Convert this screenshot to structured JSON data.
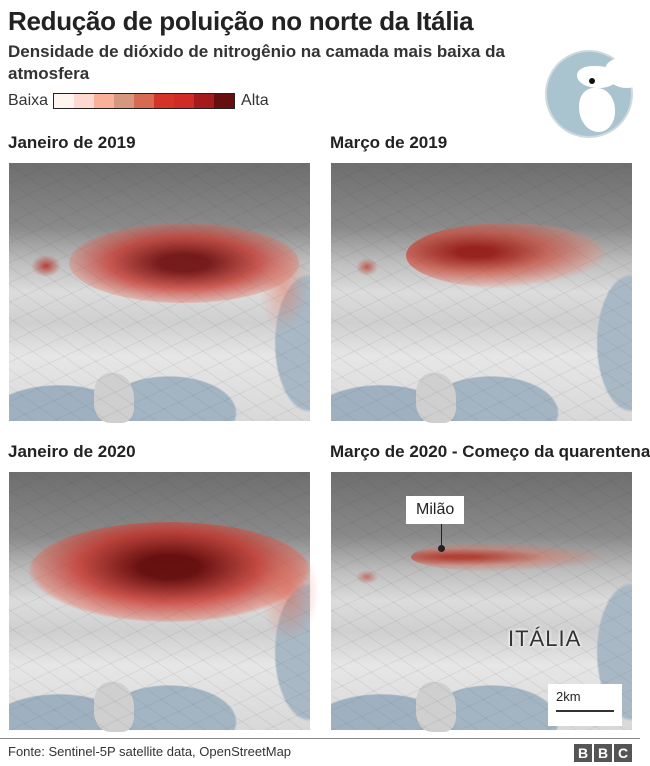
{
  "header": {
    "title": "Redução de poluição no norte da Itália",
    "subtitle": "Densidade de dióxido de nitrogênio na camada mais baixa da atmosfera"
  },
  "legend": {
    "low_label": "Baixa",
    "high_label": "Alta",
    "colors": [
      "#fff5ee",
      "#fdd9cf",
      "#fbb09a",
      "#d5977e",
      "#d66a52",
      "#d43428",
      "#d02b27",
      "#a51a1b",
      "#660f10"
    ]
  },
  "maps": [
    {
      "title": "Janeiro de 2019"
    },
    {
      "title": "Março de 2019"
    },
    {
      "title": "Janeiro de 2020"
    },
    {
      "title": "Março de 2020 - Começo da quarentena",
      "city_label": "Milão",
      "country_label": "ITÁLIA",
      "scale_label": "2km"
    }
  ],
  "footer": {
    "source": "Fonte: Sentinel-5P satellite data, OpenStreetMap",
    "logo": [
      "B",
      "B",
      "C"
    ]
  }
}
